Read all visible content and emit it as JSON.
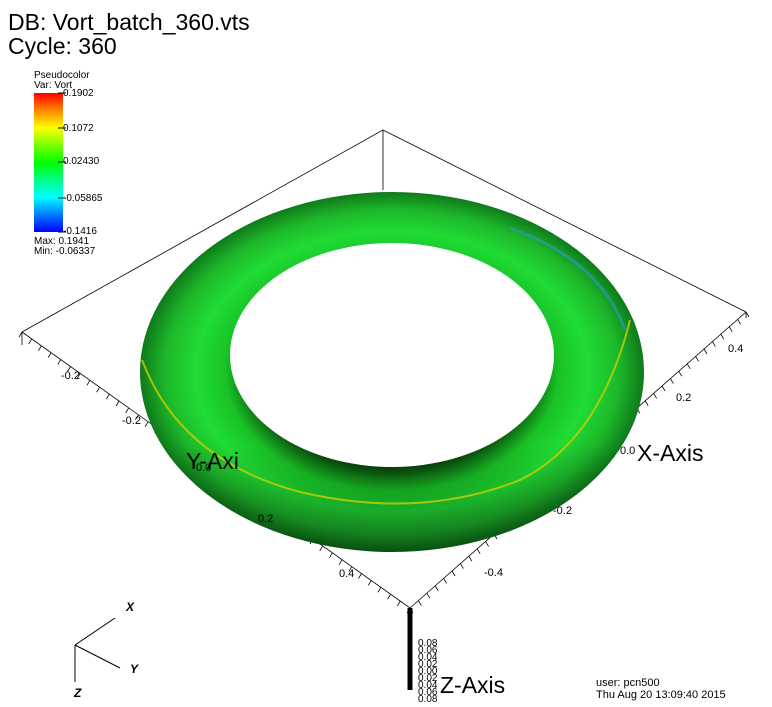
{
  "header": {
    "db_line": "DB: Vort_batch_360.vts",
    "cycle_line": "Cycle: 360"
  },
  "legend": {
    "plot_type": "Pseudocolor",
    "var_line": "Var: Vort",
    "ticks": [
      "0.1902",
      "0.1072",
      "0.02430",
      "-0.05865",
      "-0.1416"
    ],
    "max_line": "Max:  0.1941",
    "min_line": "Min: -0.06337",
    "colors": [
      "#ff0000",
      "#ffff00",
      "#00ff00",
      "#00ffff",
      "#0000ff"
    ]
  },
  "axes": {
    "x_title": "X-Axis",
    "y_title": "Y-Axi",
    "z_title": "Z-Axis",
    "x_ticks": [
      "0.4",
      "0.2",
      "0.0",
      "-0.2",
      "-0.4"
    ],
    "y_ticks": [
      "-0.2",
      "-0.2",
      "0.0",
      "0.2",
      "0.4"
    ],
    "z_ticks": [
      "0.08",
      "0.06",
      "0.04",
      "0.02",
      "0.00",
      "0.02",
      "0.04",
      "0.06",
      "0.08"
    ]
  },
  "triad": {
    "x_label": "X",
    "y_label": "Y",
    "z_label": "Z"
  },
  "footer": {
    "user_line": "user: pcn500",
    "date_line": "Thu Aug 20 13:09:40 2015"
  },
  "torus_color": "#1ecc2a"
}
